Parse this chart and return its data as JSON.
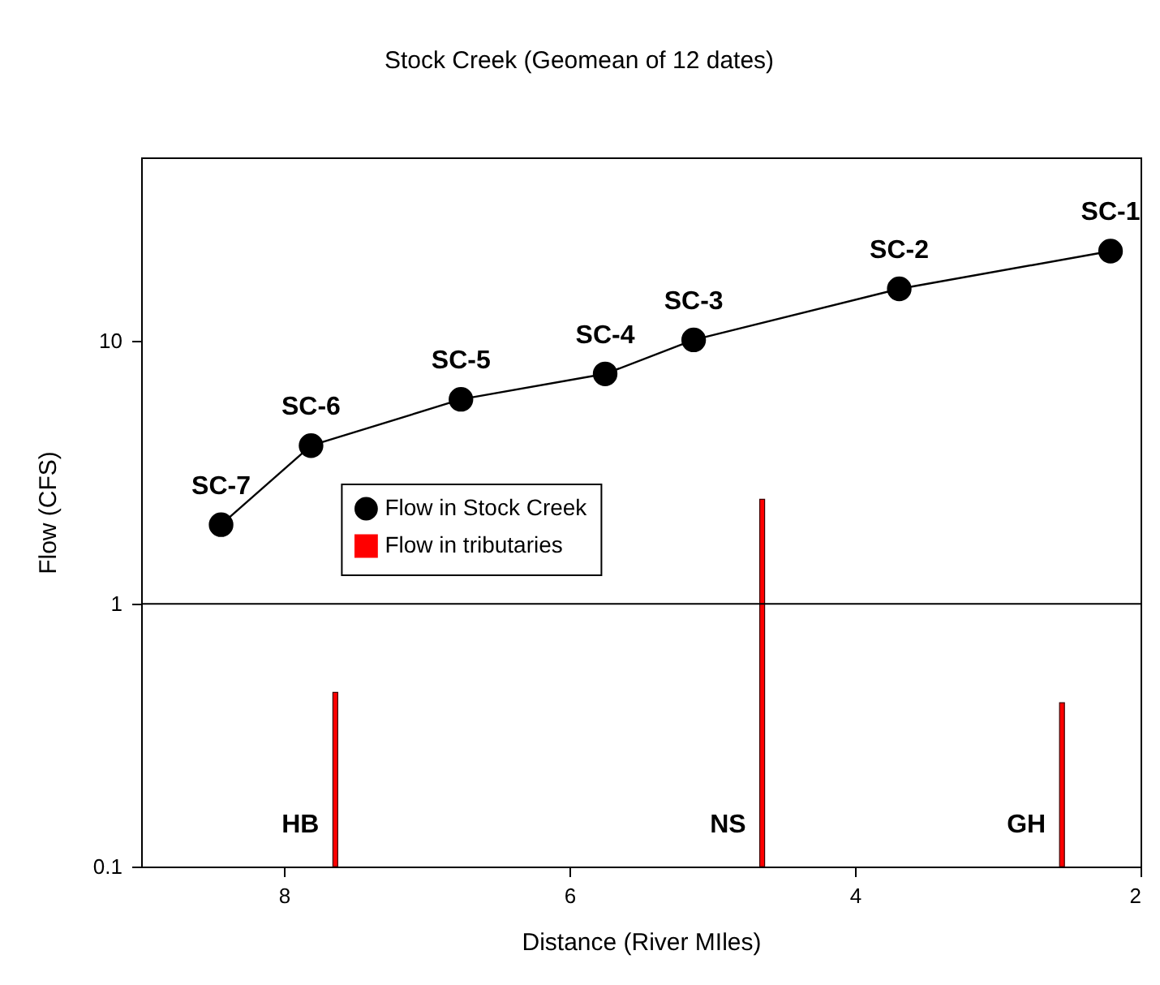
{
  "chart_data": {
    "type": "line",
    "title": "Stock Creek (Geomean of 12 dates)",
    "xlabel": "Distance (River MIles)",
    "ylabel": "Flow (CFS)",
    "series": [
      {
        "name": "Flow in Stock Creek",
        "color": "#000000",
        "x": [
          8.44,
          7.81,
          6.76,
          5.75,
          5.13,
          3.69,
          2.21
        ],
        "values": [
          2.0,
          4.0,
          6.0,
          7.5,
          10.1,
          15.8,
          22
        ]
      },
      {
        "name": "Flow in tributaries",
        "type": "bar",
        "color": "#ff0000",
        "x": [
          7.64,
          4.65,
          2.55
        ],
        "values": [
          0.46,
          2.5,
          0.42
        ]
      }
    ],
    "xlim": [
      9,
      2
    ],
    "xticks": [
      8,
      6,
      4,
      2
    ],
    "ylim": [
      0.1,
      50
    ],
    "yticks": [
      0.1,
      1,
      10
    ],
    "log": "y",
    "grid": false,
    "legend": "left",
    "marker": "circle",
    "line_style": "solid",
    "ref_lines": [
      {
        "axis": "y",
        "value": 1,
        "color": "#000000"
      }
    ],
    "annotations": [
      {
        "text": "SC-1",
        "x": 2.21,
        "y": 22
      },
      {
        "text": "SC-2",
        "x": 3.69,
        "y": 15.8
      },
      {
        "text": "SC-3",
        "x": 5.13,
        "y": 10.1
      },
      {
        "text": "SC-4",
        "x": 5.75,
        "y": 7.5
      },
      {
        "text": "SC-5",
        "x": 6.76,
        "y": 6.0
      },
      {
        "text": "SC-6",
        "x": 7.81,
        "y": 4.0
      },
      {
        "text": "SC-7",
        "x": 8.44,
        "y": 2.0
      },
      {
        "text": "HB",
        "x": 7.64,
        "y": 0.1
      },
      {
        "text": "NS",
        "x": 4.65,
        "y": 0.1
      },
      {
        "text": "GH",
        "x": 2.55,
        "y": 0.1
      }
    ]
  }
}
